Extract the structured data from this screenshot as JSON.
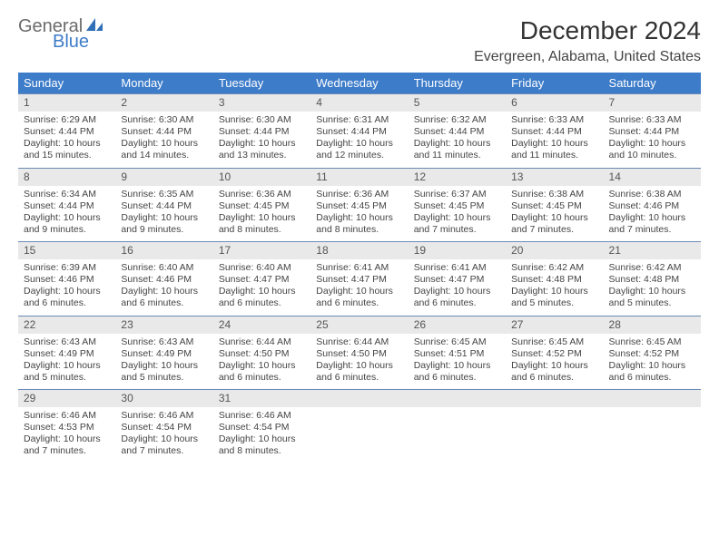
{
  "logo": {
    "general": "General",
    "blue": "Blue"
  },
  "title": "December 2024",
  "location": "Evergreen, Alabama, United States",
  "colors": {
    "header_bg": "#3d7cc9",
    "header_text": "#ffffff",
    "daynum_bg": "#e9e9e9",
    "row_border": "#6a8bb5",
    "body_text": "#444444",
    "logo_gray": "#6b6b6b",
    "logo_blue": "#3d7cc9"
  },
  "weekdays": [
    "Sunday",
    "Monday",
    "Tuesday",
    "Wednesday",
    "Thursday",
    "Friday",
    "Saturday"
  ],
  "weeks": [
    [
      {
        "n": "1",
        "sr": "Sunrise: 6:29 AM",
        "ss": "Sunset: 4:44 PM",
        "d1": "Daylight: 10 hours",
        "d2": "and 15 minutes."
      },
      {
        "n": "2",
        "sr": "Sunrise: 6:30 AM",
        "ss": "Sunset: 4:44 PM",
        "d1": "Daylight: 10 hours",
        "d2": "and 14 minutes."
      },
      {
        "n": "3",
        "sr": "Sunrise: 6:30 AM",
        "ss": "Sunset: 4:44 PM",
        "d1": "Daylight: 10 hours",
        "d2": "and 13 minutes."
      },
      {
        "n": "4",
        "sr": "Sunrise: 6:31 AM",
        "ss": "Sunset: 4:44 PM",
        "d1": "Daylight: 10 hours",
        "d2": "and 12 minutes."
      },
      {
        "n": "5",
        "sr": "Sunrise: 6:32 AM",
        "ss": "Sunset: 4:44 PM",
        "d1": "Daylight: 10 hours",
        "d2": "and 11 minutes."
      },
      {
        "n": "6",
        "sr": "Sunrise: 6:33 AM",
        "ss": "Sunset: 4:44 PM",
        "d1": "Daylight: 10 hours",
        "d2": "and 11 minutes."
      },
      {
        "n": "7",
        "sr": "Sunrise: 6:33 AM",
        "ss": "Sunset: 4:44 PM",
        "d1": "Daylight: 10 hours",
        "d2": "and 10 minutes."
      }
    ],
    [
      {
        "n": "8",
        "sr": "Sunrise: 6:34 AM",
        "ss": "Sunset: 4:44 PM",
        "d1": "Daylight: 10 hours",
        "d2": "and 9 minutes."
      },
      {
        "n": "9",
        "sr": "Sunrise: 6:35 AM",
        "ss": "Sunset: 4:44 PM",
        "d1": "Daylight: 10 hours",
        "d2": "and 9 minutes."
      },
      {
        "n": "10",
        "sr": "Sunrise: 6:36 AM",
        "ss": "Sunset: 4:45 PM",
        "d1": "Daylight: 10 hours",
        "d2": "and 8 minutes."
      },
      {
        "n": "11",
        "sr": "Sunrise: 6:36 AM",
        "ss": "Sunset: 4:45 PM",
        "d1": "Daylight: 10 hours",
        "d2": "and 8 minutes."
      },
      {
        "n": "12",
        "sr": "Sunrise: 6:37 AM",
        "ss": "Sunset: 4:45 PM",
        "d1": "Daylight: 10 hours",
        "d2": "and 7 minutes."
      },
      {
        "n": "13",
        "sr": "Sunrise: 6:38 AM",
        "ss": "Sunset: 4:45 PM",
        "d1": "Daylight: 10 hours",
        "d2": "and 7 minutes."
      },
      {
        "n": "14",
        "sr": "Sunrise: 6:38 AM",
        "ss": "Sunset: 4:46 PM",
        "d1": "Daylight: 10 hours",
        "d2": "and 7 minutes."
      }
    ],
    [
      {
        "n": "15",
        "sr": "Sunrise: 6:39 AM",
        "ss": "Sunset: 4:46 PM",
        "d1": "Daylight: 10 hours",
        "d2": "and 6 minutes."
      },
      {
        "n": "16",
        "sr": "Sunrise: 6:40 AM",
        "ss": "Sunset: 4:46 PM",
        "d1": "Daylight: 10 hours",
        "d2": "and 6 minutes."
      },
      {
        "n": "17",
        "sr": "Sunrise: 6:40 AM",
        "ss": "Sunset: 4:47 PM",
        "d1": "Daylight: 10 hours",
        "d2": "and 6 minutes."
      },
      {
        "n": "18",
        "sr": "Sunrise: 6:41 AM",
        "ss": "Sunset: 4:47 PM",
        "d1": "Daylight: 10 hours",
        "d2": "and 6 minutes."
      },
      {
        "n": "19",
        "sr": "Sunrise: 6:41 AM",
        "ss": "Sunset: 4:47 PM",
        "d1": "Daylight: 10 hours",
        "d2": "and 6 minutes."
      },
      {
        "n": "20",
        "sr": "Sunrise: 6:42 AM",
        "ss": "Sunset: 4:48 PM",
        "d1": "Daylight: 10 hours",
        "d2": "and 5 minutes."
      },
      {
        "n": "21",
        "sr": "Sunrise: 6:42 AM",
        "ss": "Sunset: 4:48 PM",
        "d1": "Daylight: 10 hours",
        "d2": "and 5 minutes."
      }
    ],
    [
      {
        "n": "22",
        "sr": "Sunrise: 6:43 AM",
        "ss": "Sunset: 4:49 PM",
        "d1": "Daylight: 10 hours",
        "d2": "and 5 minutes."
      },
      {
        "n": "23",
        "sr": "Sunrise: 6:43 AM",
        "ss": "Sunset: 4:49 PM",
        "d1": "Daylight: 10 hours",
        "d2": "and 5 minutes."
      },
      {
        "n": "24",
        "sr": "Sunrise: 6:44 AM",
        "ss": "Sunset: 4:50 PM",
        "d1": "Daylight: 10 hours",
        "d2": "and 6 minutes."
      },
      {
        "n": "25",
        "sr": "Sunrise: 6:44 AM",
        "ss": "Sunset: 4:50 PM",
        "d1": "Daylight: 10 hours",
        "d2": "and 6 minutes."
      },
      {
        "n": "26",
        "sr": "Sunrise: 6:45 AM",
        "ss": "Sunset: 4:51 PM",
        "d1": "Daylight: 10 hours",
        "d2": "and 6 minutes."
      },
      {
        "n": "27",
        "sr": "Sunrise: 6:45 AM",
        "ss": "Sunset: 4:52 PM",
        "d1": "Daylight: 10 hours",
        "d2": "and 6 minutes."
      },
      {
        "n": "28",
        "sr": "Sunrise: 6:45 AM",
        "ss": "Sunset: 4:52 PM",
        "d1": "Daylight: 10 hours",
        "d2": "and 6 minutes."
      }
    ],
    [
      {
        "n": "29",
        "sr": "Sunrise: 6:46 AM",
        "ss": "Sunset: 4:53 PM",
        "d1": "Daylight: 10 hours",
        "d2": "and 7 minutes."
      },
      {
        "n": "30",
        "sr": "Sunrise: 6:46 AM",
        "ss": "Sunset: 4:54 PM",
        "d1": "Daylight: 10 hours",
        "d2": "and 7 minutes."
      },
      {
        "n": "31",
        "sr": "Sunrise: 6:46 AM",
        "ss": "Sunset: 4:54 PM",
        "d1": "Daylight: 10 hours",
        "d2": "and 8 minutes."
      },
      {
        "empty": true
      },
      {
        "empty": true
      },
      {
        "empty": true
      },
      {
        "empty": true
      }
    ]
  ]
}
